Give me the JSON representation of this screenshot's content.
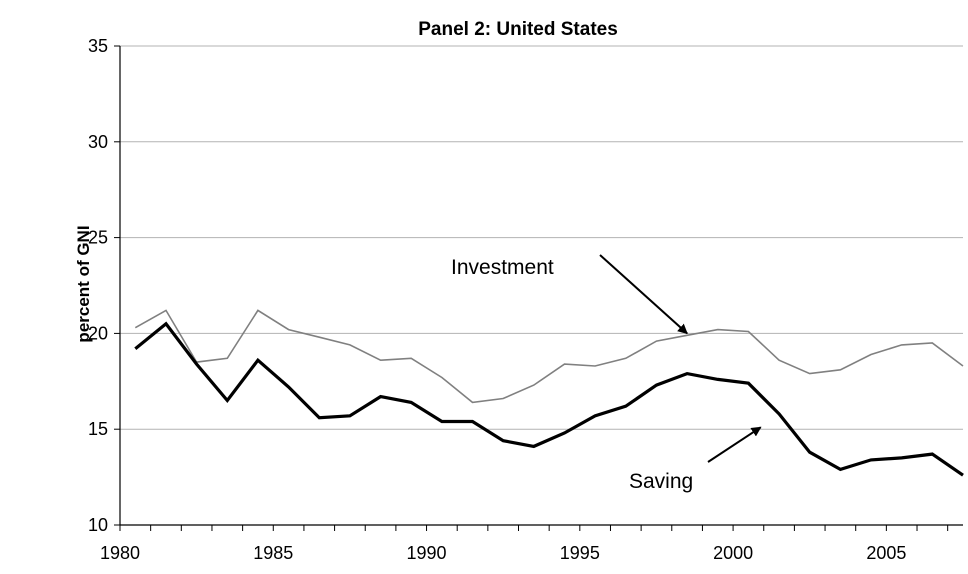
{
  "chart_data": {
    "type": "line",
    "title": "Panel 2: United States",
    "ylabel": "percent of GNI",
    "xlabel": "",
    "x": [
      1980,
      1981,
      1982,
      1983,
      1984,
      1985,
      1986,
      1987,
      1988,
      1989,
      1990,
      1991,
      1992,
      1993,
      1994,
      1995,
      1996,
      1997,
      1998,
      1999,
      2000,
      2001,
      2002,
      2003,
      2004,
      2005,
      2006,
      2007
    ],
    "xlim": [
      1979.5,
      2007
    ],
    "ylim": [
      10,
      35
    ],
    "yticks": [
      10,
      15,
      20,
      25,
      30,
      35
    ],
    "xticks": [
      1980,
      1985,
      1990,
      1995,
      2000,
      2005
    ],
    "grid": "horizontal",
    "legend": "none",
    "series": [
      {
        "name": "Investment",
        "color": "#808080",
        "values": [
          20.3,
          21.2,
          18.5,
          18.7,
          21.2,
          20.2,
          19.8,
          19.4,
          18.6,
          18.7,
          17.7,
          16.4,
          16.6,
          17.3,
          18.4,
          18.3,
          18.7,
          19.6,
          19.9,
          20.2,
          20.1,
          18.6,
          17.9,
          18.1,
          18.9,
          19.4,
          19.5,
          18.3
        ]
      },
      {
        "name": "Saving",
        "color": "#000000",
        "values": [
          19.2,
          20.5,
          18.4,
          16.5,
          18.6,
          17.2,
          15.6,
          15.7,
          16.7,
          16.4,
          15.4,
          15.4,
          14.4,
          14.1,
          14.8,
          15.7,
          16.2,
          17.3,
          17.9,
          17.6,
          17.4,
          15.8,
          13.8,
          12.9,
          13.4,
          13.5,
          13.7,
          12.6
        ]
      }
    ],
    "annotations": [
      {
        "text": "Investment",
        "points_to": "Investment",
        "target": [
          1998,
          20.0
        ]
      },
      {
        "text": "Saving",
        "points_to": "Saving",
        "target": [
          2000.4,
          15.1
        ]
      }
    ]
  }
}
